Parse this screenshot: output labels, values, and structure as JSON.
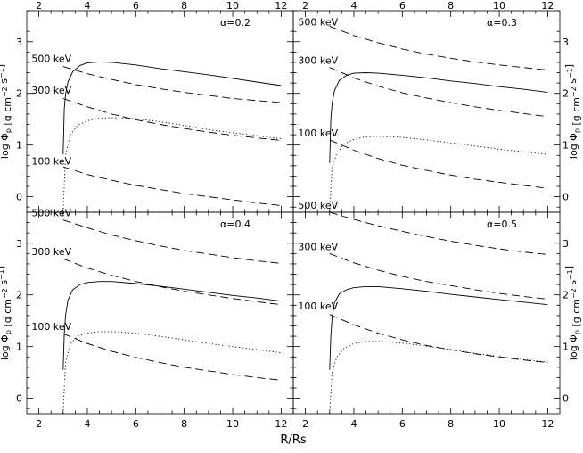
{
  "chart_data": {
    "type": "line",
    "xlabel": "R/Rs",
    "ylabel": "log Φ",
    "ylabel_sub": "p",
    "ylabel_units": "[g cm",
    "ylabel_exp1": "−2",
    "ylabel_units2": " s",
    "ylabel_exp2": "−1",
    "ylabel_close": "]",
    "xlim": [
      1.5,
      12.5
    ],
    "ylim": [
      -0.3,
      3.6
    ],
    "xticks": [
      2,
      4,
      6,
      8,
      10,
      12
    ],
    "yticks": [
      0,
      1,
      2,
      3
    ],
    "panels": [
      {
        "label": "α=0.2",
        "annotations": [
          {
            "text": "500 keV",
            "x": 1.7,
            "y": 2.54
          },
          {
            "text": "300 keV",
            "x": 1.7,
            "y": 1.93
          },
          {
            "text": "100 keV",
            "x": 1.7,
            "y": 0.55
          }
        ],
        "series": [
          {
            "style": "solid",
            "x": [
              3.0,
              3.05,
              3.1,
              3.2,
              3.4,
              3.7,
              4.0,
              4.5,
              5.0,
              6.0,
              7.0,
              8.0,
              9.0,
              10.0,
              11.0,
              12.0
            ],
            "y": [
              0.82,
              1.7,
              1.98,
              2.22,
              2.42,
              2.54,
              2.59,
              2.61,
              2.6,
              2.55,
              2.48,
              2.42,
              2.36,
              2.29,
              2.22,
              2.15
            ]
          },
          {
            "style": "dotted",
            "x": [
              3.0,
              3.1,
              3.3,
              3.6,
              4.0,
              4.5,
              5.0,
              6.0,
              7.0,
              8.0,
              9.0,
              10.0,
              11.0,
              12.0
            ],
            "y": [
              -0.3,
              0.8,
              1.2,
              1.38,
              1.47,
              1.52,
              1.53,
              1.51,
              1.45,
              1.38,
              1.3,
              1.24,
              1.18,
              1.12
            ]
          },
          {
            "style": "dashed",
            "x": [
              3.0,
              4.0,
              5.0,
              6.0,
              7.0,
              8.0,
              9.0,
              10.0,
              11.0,
              12.0
            ],
            "y": [
              2.52,
              2.38,
              2.27,
              2.17,
              2.09,
              2.02,
              1.96,
              1.9,
              1.86,
              1.82
            ]
          },
          {
            "style": "dashed",
            "x": [
              3.0,
              4.0,
              5.0,
              6.0,
              7.0,
              8.0,
              9.0,
              10.0,
              11.0,
              12.0
            ],
            "y": [
              1.9,
              1.74,
              1.6,
              1.49,
              1.4,
              1.32,
              1.25,
              1.19,
              1.14,
              1.09
            ]
          },
          {
            "style": "dashed",
            "x": [
              3.0,
              4.0,
              5.0,
              6.0,
              7.0,
              8.0,
              9.0,
              10.0,
              11.0,
              12.0
            ],
            "y": [
              0.58,
              0.43,
              0.32,
              0.22,
              0.14,
              0.06,
              0.0,
              -0.06,
              -0.12,
              -0.17
            ]
          }
        ]
      },
      {
        "label": "α=0.3",
        "annotations": [
          {
            "text": "500 keV",
            "x": 1.7,
            "y": 3.25
          },
          {
            "text": "300 keV",
            "x": 1.7,
            "y": 2.5
          },
          {
            "text": "100 keV",
            "x": 1.7,
            "y": 1.1
          }
        ],
        "series": [
          {
            "style": "solid",
            "x": [
              3.0,
              3.05,
              3.1,
              3.2,
              3.4,
              3.7,
              4.0,
              4.5,
              5.0,
              6.0,
              7.0,
              8.0,
              9.0,
              10.0,
              11.0,
              12.0
            ],
            "y": [
              0.65,
              1.5,
              1.8,
              2.05,
              2.25,
              2.35,
              2.39,
              2.4,
              2.39,
              2.35,
              2.3,
              2.24,
              2.19,
              2.13,
              2.08,
              2.02
            ]
          },
          {
            "style": "dotted",
            "x": [
              3.0,
              3.1,
              3.3,
              3.6,
              4.0,
              4.5,
              5.0,
              6.0,
              7.0,
              8.0,
              9.0,
              10.0,
              11.0,
              12.0
            ],
            "y": [
              -0.3,
              0.55,
              0.85,
              1.02,
              1.11,
              1.16,
              1.17,
              1.15,
              1.1,
              1.04,
              0.98,
              0.92,
              0.87,
              0.82
            ]
          },
          {
            "style": "dashed",
            "x": [
              3.0,
              4.0,
              5.0,
              6.0,
              7.0,
              8.0,
              9.0,
              10.0,
              11.0,
              12.0
            ],
            "y": [
              3.3,
              3.12,
              2.98,
              2.86,
              2.76,
              2.68,
              2.61,
              2.55,
              2.5,
              2.45
            ]
          },
          {
            "style": "dashed",
            "x": [
              3.0,
              4.0,
              5.0,
              6.0,
              7.0,
              8.0,
              9.0,
              10.0,
              11.0,
              12.0
            ],
            "y": [
              2.5,
              2.3,
              2.14,
              2.01,
              1.91,
              1.82,
              1.74,
              1.67,
              1.61,
              1.55
            ]
          },
          {
            "style": "dashed",
            "x": [
              3.0,
              4.0,
              5.0,
              6.0,
              7.0,
              8.0,
              9.0,
              10.0,
              11.0,
              12.0
            ],
            "y": [
              1.1,
              0.9,
              0.74,
              0.61,
              0.51,
              0.42,
              0.34,
              0.28,
              0.22,
              0.16
            ]
          }
        ]
      },
      {
        "label": "α=0.4",
        "annotations": [
          {
            "text": "500 keV",
            "x": 1.7,
            "y": 3.45
          },
          {
            "text": "300 keV",
            "x": 1.7,
            "y": 2.7
          },
          {
            "text": "100 keV",
            "x": 1.7,
            "y": 1.25
          }
        ],
        "series": [
          {
            "style": "solid",
            "x": [
              3.0,
              3.05,
              3.1,
              3.2,
              3.4,
              3.7,
              4.0,
              4.5,
              5.0,
              6.0,
              7.0,
              8.0,
              9.0,
              10.0,
              11.0,
              12.0
            ],
            "y": [
              0.55,
              1.25,
              1.6,
              1.9,
              2.1,
              2.2,
              2.24,
              2.26,
              2.26,
              2.22,
              2.17,
              2.11,
              2.05,
              1.99,
              1.94,
              1.88
            ]
          },
          {
            "style": "dotted",
            "x": [
              3.0,
              3.1,
              3.3,
              3.6,
              4.0,
              4.5,
              5.0,
              6.0,
              7.0,
              8.0,
              9.0,
              10.0,
              11.0,
              12.0
            ],
            "y": [
              -0.3,
              0.7,
              1.05,
              1.2,
              1.26,
              1.29,
              1.29,
              1.26,
              1.2,
              1.13,
              1.06,
              1.0,
              0.94,
              0.88
            ]
          },
          {
            "style": "dashed",
            "x": [
              3.0,
              4.0,
              5.0,
              6.0,
              7.0,
              8.0,
              9.0,
              10.0,
              11.0,
              12.0
            ],
            "y": [
              3.45,
              3.3,
              3.16,
              3.05,
              2.95,
              2.86,
              2.79,
              2.72,
              2.66,
              2.61
            ]
          },
          {
            "style": "dashed",
            "x": [
              3.0,
              4.0,
              5.0,
              6.0,
              7.0,
              8.0,
              9.0,
              10.0,
              11.0,
              12.0
            ],
            "y": [
              2.7,
              2.52,
              2.38,
              2.26,
              2.16,
              2.07,
              2.0,
              1.93,
              1.87,
              1.81
            ]
          },
          {
            "style": "dashed",
            "x": [
              3.0,
              4.0,
              5.0,
              6.0,
              7.0,
              8.0,
              9.0,
              10.0,
              11.0,
              12.0
            ],
            "y": [
              1.25,
              1.06,
              0.91,
              0.79,
              0.69,
              0.6,
              0.53,
              0.46,
              0.4,
              0.35
            ]
          }
        ]
      },
      {
        "label": "α=0.5",
        "annotations": [
          {
            "text": "500 keV",
            "x": 1.7,
            "y": 3.6
          },
          {
            "text": "300 keV",
            "x": 1.7,
            "y": 2.8
          },
          {
            "text": "100 keV",
            "x": 1.7,
            "y": 1.65
          }
        ],
        "series": [
          {
            "style": "solid",
            "x": [
              3.0,
              3.05,
              3.1,
              3.2,
              3.4,
              3.7,
              4.0,
              4.5,
              5.0,
              6.0,
              7.0,
              8.0,
              9.0,
              10.0,
              11.0,
              12.0
            ],
            "y": [
              0.55,
              1.2,
              1.55,
              1.85,
              2.02,
              2.1,
              2.14,
              2.16,
              2.16,
              2.12,
              2.07,
              2.01,
              1.96,
              1.91,
              1.86,
              1.81
            ]
          },
          {
            "style": "dotted",
            "x": [
              3.0,
              3.1,
              3.3,
              3.6,
              4.0,
              4.5,
              5.0,
              6.0,
              7.0,
              8.0,
              9.0,
              10.0,
              11.0,
              12.0
            ],
            "y": [
              -0.3,
              0.5,
              0.8,
              0.97,
              1.06,
              1.1,
              1.1,
              1.07,
              1.01,
              0.94,
              0.87,
              0.81,
              0.75,
              0.7
            ]
          },
          {
            "style": "dashed",
            "x": [
              3.0,
              4.0,
              5.0,
              6.0,
              7.0,
              8.0,
              9.0,
              10.0,
              11.0,
              12.0
            ],
            "y": [
              3.6,
              3.46,
              3.34,
              3.23,
              3.13,
              3.04,
              2.96,
              2.89,
              2.83,
              2.78
            ]
          },
          {
            "style": "dashed",
            "x": [
              3.0,
              4.0,
              5.0,
              6.0,
              7.0,
              8.0,
              9.0,
              10.0,
              11.0,
              12.0
            ],
            "y": [
              2.8,
              2.62,
              2.48,
              2.36,
              2.26,
              2.18,
              2.1,
              2.03,
              1.97,
              1.92
            ]
          },
          {
            "style": "dashed",
            "x": [
              3.0,
              4.0,
              5.0,
              6.0,
              7.0,
              8.0,
              9.0,
              10.0,
              11.0,
              12.0
            ],
            "y": [
              1.62,
              1.42,
              1.26,
              1.13,
              1.02,
              0.94,
              0.86,
              0.8,
              0.74,
              0.69
            ]
          }
        ]
      }
    ]
  }
}
